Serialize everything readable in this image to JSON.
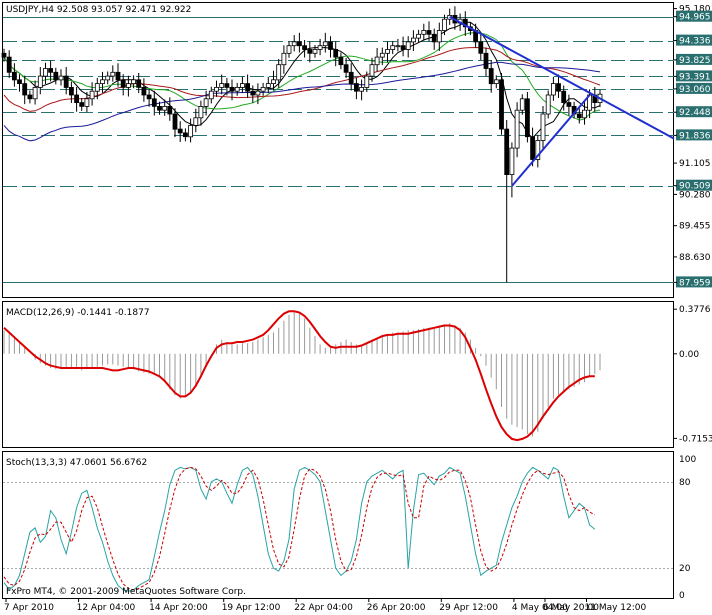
{
  "app": {
    "copyright": "FxPro MT4, © 2001-2009 MetaQuotes Software Corp."
  },
  "chart_data": [
    {
      "type": "candlestick",
      "title": "USDJPY,H4  92.508 93.057 92.471 92.922",
      "ylim": [
        87.6,
        95.3
      ],
      "ticks": [
        "95.180",
        "94.965",
        "94.336",
        "93.825",
        "93.391",
        "93.060",
        "92.448",
        "91.836",
        "91.105",
        "90.509",
        "90.280",
        "89.455",
        "88.630",
        "87.959"
      ],
      "highlight_ticks": [
        "94.965",
        "94.336",
        "93.825",
        "93.391",
        "93.060",
        "92.448",
        "91.836",
        "90.509",
        "87.959"
      ],
      "horizontal_levels": [
        94.965,
        94.336,
        93.825,
        93.391,
        93.06,
        92.448,
        91.836,
        90.509,
        87.959
      ],
      "x_labels": [
        "7 Apr 2010",
        "12 Apr 04:00",
        "14 Apr 20:00",
        "19 Apr 12:00",
        "22 Apr 04:00",
        "26 Apr 20:00",
        "29 Apr 12:00",
        "4 May 04:00",
        "6 May 20:00",
        "11 May 12:00"
      ],
      "closes": [
        93.9,
        93.5,
        93.3,
        93.2,
        92.9,
        92.8,
        93.1,
        93.4,
        93.6,
        93.5,
        93.3,
        93.4,
        93.1,
        92.9,
        92.7,
        92.6,
        92.8,
        93.0,
        93.2,
        93.3,
        93.4,
        93.5,
        93.3,
        93.1,
        93.2,
        93.3,
        93.1,
        92.9,
        92.8,
        92.6,
        92.5,
        92.6,
        92.4,
        92.0,
        91.9,
        91.8,
        92.1,
        92.3,
        92.6,
        92.8,
        93.0,
        93.1,
        93.2,
        93.1,
        93.0,
        93.1,
        93.2,
        93.0,
        92.9,
        93.0,
        93.1,
        93.2,
        93.3,
        93.7,
        94.0,
        94.2,
        94.3,
        94.2,
        94.1,
        94.0,
        94.1,
        94.2,
        94.3,
        94.1,
        93.9,
        93.7,
        93.5,
        93.2,
        93.0,
        93.1,
        93.4,
        93.7,
        93.9,
        94.0,
        94.1,
        94.2,
        94.2,
        94.1,
        94.3,
        94.4,
        94.5,
        94.6,
        94.5,
        94.3,
        94.6,
        94.9,
        95.0,
        94.8,
        94.9,
        94.7,
        94.6,
        94.3,
        94.0,
        93.6,
        93.2,
        93.3,
        92.0,
        90.8,
        91.5,
        92.5,
        92.8,
        91.8,
        91.2,
        91.7,
        92.4,
        92.9,
        93.2,
        93.0,
        92.7,
        92.6,
        92.4,
        92.3,
        92.5,
        92.9,
        92.7,
        92.922
      ],
      "ma_series": [
        "black",
        "green",
        "darkred",
        "navy"
      ],
      "trendlines": [
        {
          "from": [
            94.96,
            "4 May 04:00"
          ],
          "to": [
            91.75,
            "edge"
          ]
        },
        {
          "from": [
            90.5,
            "6 May 20:00"
          ],
          "to": [
            92.9,
            "11 May 12:00"
          ]
        }
      ]
    },
    {
      "type": "line",
      "title": "MACD(12,26,9) -0.1441 -0.1877",
      "ylim": [
        -0.78,
        0.43
      ],
      "ticks": [
        "0.3776",
        "0.00",
        "-0.7153"
      ],
      "histogram": [
        0.2,
        0.18,
        0.15,
        0.1,
        0.05,
        0.0,
        -0.05,
        -0.08,
        -0.1,
        -0.12,
        -0.13,
        -0.12,
        -0.11,
        -0.12,
        -0.13,
        -0.14,
        -0.13,
        -0.12,
        -0.11,
        -0.1,
        -0.09,
        -0.09,
        -0.1,
        -0.11,
        -0.12,
        -0.13,
        -0.15,
        -0.16,
        -0.17,
        -0.18,
        -0.2,
        -0.24,
        -0.3,
        -0.35,
        -0.38,
        -0.37,
        -0.33,
        -0.28,
        -0.2,
        -0.1,
        0.0,
        0.08,
        0.12,
        0.1,
        0.08,
        0.08,
        0.09,
        0.09,
        0.1,
        0.12,
        0.14,
        0.16,
        0.18,
        0.22,
        0.28,
        0.33,
        0.36,
        0.34,
        0.3,
        0.22,
        0.15,
        0.08,
        0.05,
        0.06,
        0.08,
        0.1,
        0.12,
        0.1,
        0.08,
        0.07,
        0.09,
        0.12,
        0.14,
        0.15,
        0.16,
        0.18,
        0.18,
        0.19,
        0.2,
        0.2,
        0.21,
        0.22,
        0.22,
        0.21,
        0.23,
        0.25,
        0.26,
        0.24,
        0.22,
        0.18,
        0.12,
        0.05,
        -0.02,
        -0.1,
        -0.2,
        -0.3,
        -0.45,
        -0.55,
        -0.6,
        -0.62,
        -0.64,
        -0.68,
        -0.7,
        -0.66,
        -0.55,
        -0.45,
        -0.38,
        -0.35,
        -0.32,
        -0.3,
        -0.28,
        -0.26,
        -0.24,
        -0.2,
        -0.17,
        -0.14
      ],
      "signal": [
        0.22,
        0.18,
        0.14,
        0.1,
        0.06,
        0.02,
        -0.02,
        -0.05,
        -0.08,
        -0.1,
        -0.11,
        -0.12,
        -0.12,
        -0.12,
        -0.12,
        -0.12,
        -0.12,
        -0.12,
        -0.12,
        -0.12,
        -0.13,
        -0.14,
        -0.14,
        -0.13,
        -0.12,
        -0.12,
        -0.13,
        -0.14,
        -0.15,
        -0.17,
        -0.19,
        -0.23,
        -0.28,
        -0.33,
        -0.36,
        -0.36,
        -0.33,
        -0.27,
        -0.19,
        -0.1,
        -0.02,
        0.05,
        0.08,
        0.09,
        0.09,
        0.1,
        0.1,
        0.11,
        0.12,
        0.14,
        0.16,
        0.2,
        0.25,
        0.3,
        0.34,
        0.36,
        0.36,
        0.35,
        0.32,
        0.27,
        0.21,
        0.15,
        0.1,
        0.06,
        0.05,
        0.06,
        0.06,
        0.06,
        0.06,
        0.07,
        0.09,
        0.11,
        0.13,
        0.15,
        0.16,
        0.16,
        0.17,
        0.17,
        0.17,
        0.18,
        0.19,
        0.2,
        0.21,
        0.22,
        0.23,
        0.24,
        0.24,
        0.23,
        0.2,
        0.14,
        0.05,
        -0.05,
        -0.17,
        -0.3,
        -0.42,
        -0.53,
        -0.62,
        -0.68,
        -0.72,
        -0.73,
        -0.72,
        -0.7,
        -0.66,
        -0.6,
        -0.53,
        -0.47,
        -0.41,
        -0.36,
        -0.32,
        -0.28,
        -0.25,
        -0.22,
        -0.2,
        -0.19,
        -0.19
      ]
    },
    {
      "type": "line",
      "title": "Stoch(13,3,3) 47.0601 56.6762",
      "ylim": [
        0,
        100
      ],
      "ticks": [
        "100",
        "80",
        "20",
        "0"
      ],
      "levels": [
        80,
        20
      ],
      "main": [
        10,
        5,
        8,
        15,
        30,
        45,
        48,
        38,
        42,
        60,
        55,
        40,
        30,
        45,
        62,
        72,
        74,
        62,
        48,
        38,
        25,
        15,
        8,
        5,
        4,
        5,
        8,
        10,
        12,
        28,
        45,
        60,
        78,
        88,
        90,
        89,
        90,
        88,
        75,
        68,
        80,
        82,
        80,
        72,
        65,
        78,
        88,
        90,
        85,
        70,
        50,
        30,
        20,
        18,
        25,
        40,
        75,
        88,
        90,
        88,
        85,
        80,
        60,
        40,
        20,
        15,
        18,
        25,
        40,
        65,
        80,
        84,
        86,
        88,
        85,
        82,
        86,
        88,
        20,
        60,
        85,
        86,
        82,
        78,
        84,
        86,
        90,
        88,
        86,
        70,
        50,
        30,
        15,
        18,
        20,
        22,
        38,
        50,
        62,
        70,
        80,
        86,
        90,
        88,
        85,
        82,
        90,
        88,
        70,
        55,
        60,
        65,
        62,
        50,
        47
      ],
      "signal": [
        14,
        9,
        8,
        11,
        19,
        31,
        41,
        44,
        43,
        47,
        52,
        52,
        45,
        38,
        46,
        60,
        69,
        70,
        62,
        49,
        37,
        26,
        16,
        9,
        6,
        5,
        6,
        8,
        10,
        17,
        28,
        44,
        61,
        75,
        85,
        89,
        90,
        89,
        84,
        77,
        74,
        77,
        81,
        78,
        72,
        72,
        77,
        85,
        88,
        82,
        68,
        50,
        33,
        23,
        21,
        28,
        47,
        68,
        84,
        89,
        88,
        84,
        75,
        60,
        40,
        25,
        18,
        19,
        28,
        43,
        62,
        76,
        83,
        86,
        86,
        85,
        84,
        85,
        65,
        55,
        55,
        77,
        84,
        82,
        81,
        83,
        87,
        88,
        88,
        81,
        69,
        50,
        32,
        21,
        18,
        20,
        27,
        37,
        50,
        61,
        71,
        79,
        85,
        88,
        86,
        85,
        86,
        87,
        83,
        71,
        62,
        60,
        62,
        59,
        57
      ]
    }
  ]
}
